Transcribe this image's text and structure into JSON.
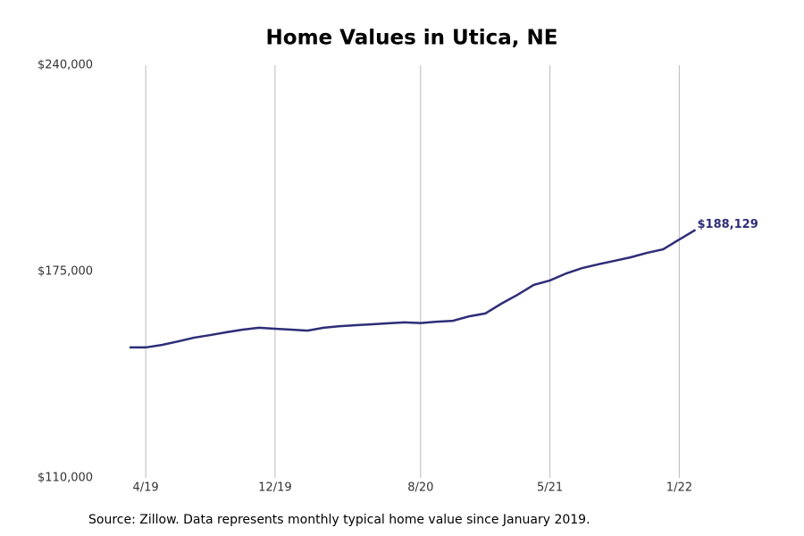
{
  "chart_data": {
    "type": "line",
    "title": "Home Values in Utica, NE",
    "source": "Source: Zillow. Data represents monthly typical home value since January 2019.",
    "categories": [
      null,
      "4/19",
      null,
      null,
      null,
      null,
      null,
      null,
      null,
      "12/19",
      null,
      null,
      null,
      null,
      null,
      null,
      null,
      null,
      "8/20",
      null,
      null,
      null,
      null,
      null,
      null,
      null,
      "5/21",
      null,
      null,
      null,
      null,
      null,
      null,
      null,
      "1/22",
      null
    ],
    "series": [
      {
        "name": "Home value",
        "color": "#2d2d78",
        "values": [
          151100,
          151100,
          151900,
          153000,
          154200,
          155000,
          155900,
          156700,
          157300,
          157000,
          156700,
          156400,
          157300,
          157800,
          158100,
          158400,
          158700,
          159000,
          158800,
          159200,
          159500,
          160900,
          161800,
          164900,
          167700,
          170800,
          172200,
          174400,
          176100,
          177300,
          178400,
          179500,
          180900,
          182000,
          185100,
          188129
        ],
        "value_labels": [
          null,
          null,
          null,
          null,
          null,
          null,
          null,
          null,
          null,
          null,
          null,
          null,
          null,
          null,
          null,
          null,
          null,
          null,
          null,
          null,
          null,
          null,
          null,
          null,
          null,
          null,
          null,
          null,
          null,
          null,
          null,
          null,
          null,
          null,
          null,
          "$188,129"
        ]
      }
    ],
    "ylim": [
      110000,
      240000
    ],
    "yticks": [
      {
        "value": 110000,
        "label": "$110,000"
      },
      {
        "value": 175000,
        "label": "$175,000"
      },
      {
        "value": 240000,
        "label": "$240,000"
      }
    ],
    "xgrid": true
  }
}
